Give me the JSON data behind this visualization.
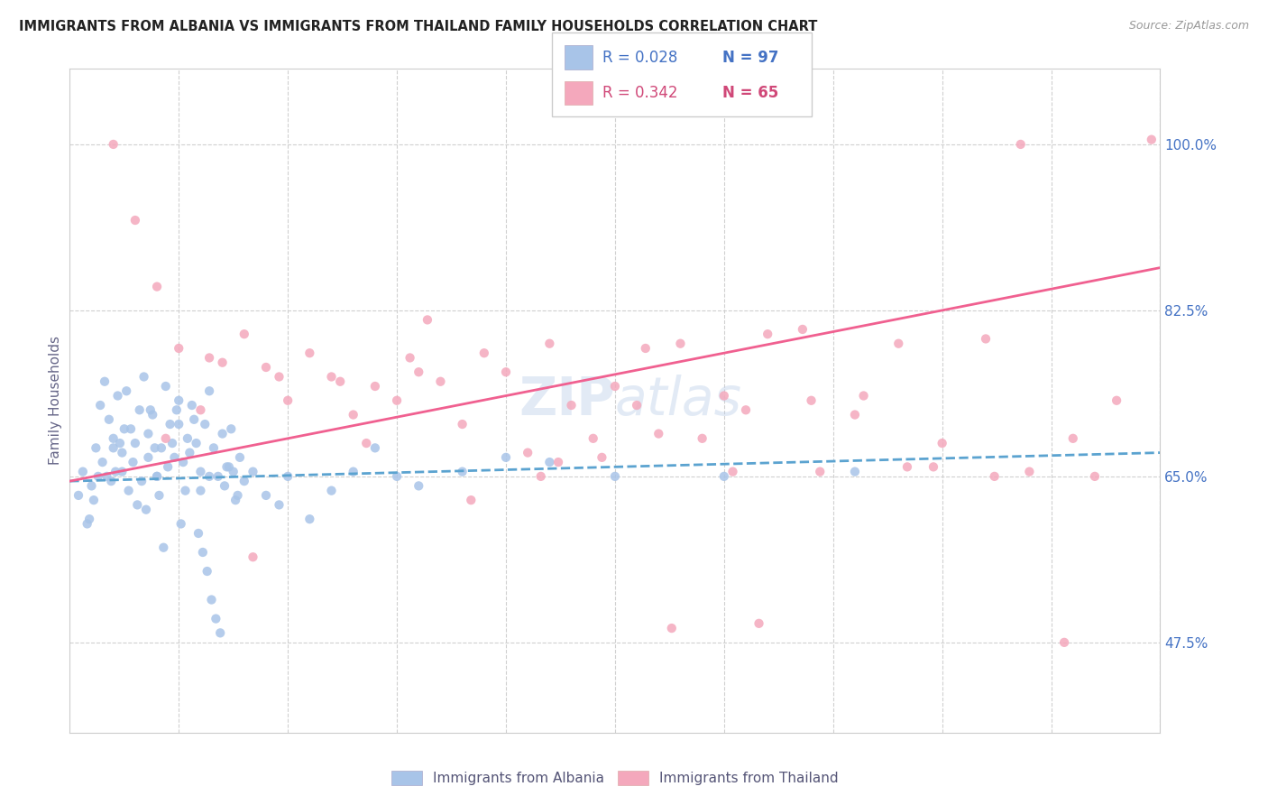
{
  "title": "IMMIGRANTS FROM ALBANIA VS IMMIGRANTS FROM THAILAND FAMILY HOUSEHOLDS CORRELATION CHART",
  "source": "Source: ZipAtlas.com",
  "ylabel": "Family Households",
  "yticks": [
    47.5,
    65.0,
    82.5,
    100.0
  ],
  "ytick_labels": [
    "47.5%",
    "65.0%",
    "82.5%",
    "100.0%"
  ],
  "xlim": [
    0.0,
    25.0
  ],
  "ylim": [
    38.0,
    108.0
  ],
  "color_albania": "#a8c4e8",
  "color_thailand": "#f4a8bc",
  "color_line_albania": "#5ba3d0",
  "color_line_thailand": "#f06090",
  "color_text_blue": "#4472c4",
  "color_text_pink": "#d04878",
  "background_color": "#ffffff",
  "albania_x": [
    0.2,
    0.3,
    0.4,
    0.5,
    0.6,
    0.7,
    0.8,
    0.9,
    1.0,
    1.1,
    1.2,
    1.3,
    1.4,
    1.5,
    1.6,
    1.7,
    1.8,
    1.9,
    2.0,
    2.1,
    2.2,
    2.3,
    2.4,
    2.5,
    2.6,
    2.7,
    2.8,
    2.9,
    3.0,
    3.1,
    3.2,
    3.3,
    3.4,
    3.5,
    3.6,
    3.7,
    3.8,
    3.9,
    4.0,
    4.2,
    4.5,
    4.8,
    5.0,
    5.5,
    6.0,
    6.5,
    7.0,
    7.5,
    8.0,
    9.0,
    10.0,
    11.0,
    12.5,
    15.0,
    18.0,
    1.05,
    1.15,
    1.25,
    1.35,
    1.45,
    1.55,
    1.65,
    1.75,
    1.85,
    1.95,
    2.05,
    2.15,
    2.25,
    2.35,
    2.45,
    2.55,
    2.65,
    2.75,
    2.85,
    2.95,
    3.05,
    3.15,
    3.25,
    3.35,
    3.45,
    3.55,
    3.65,
    3.75,
    3.85,
    0.45,
    0.55,
    0.65,
    0.75,
    0.85,
    0.95,
    1.0,
    2.0,
    3.0,
    1.2,
    1.8,
    2.5,
    3.2
  ],
  "albania_y": [
    63.0,
    65.5,
    60.0,
    64.0,
    68.0,
    72.5,
    75.0,
    71.0,
    69.0,
    73.5,
    67.5,
    74.0,
    70.0,
    68.5,
    72.0,
    75.5,
    69.5,
    71.5,
    65.0,
    68.0,
    74.5,
    70.5,
    67.0,
    73.0,
    66.5,
    69.0,
    72.5,
    68.5,
    65.5,
    70.5,
    74.0,
    68.0,
    65.0,
    69.5,
    66.0,
    70.0,
    62.5,
    67.0,
    64.5,
    65.5,
    63.0,
    62.0,
    65.0,
    60.5,
    63.5,
    65.5,
    68.0,
    65.0,
    64.0,
    65.5,
    67.0,
    66.5,
    65.0,
    65.0,
    65.5,
    65.5,
    68.5,
    70.0,
    63.5,
    66.5,
    62.0,
    64.5,
    61.5,
    72.0,
    68.0,
    63.0,
    57.5,
    66.0,
    68.5,
    72.0,
    60.0,
    63.5,
    67.5,
    71.0,
    59.0,
    57.0,
    55.0,
    52.0,
    50.0,
    48.5,
    64.0,
    66.0,
    65.5,
    63.0,
    60.5,
    62.5,
    65.0,
    66.5,
    65.0,
    64.5,
    68.0,
    65.0,
    63.5,
    65.5,
    67.0,
    70.5,
    65.0
  ],
  "thailand_x": [
    1.0,
    1.5,
    2.0,
    2.5,
    3.0,
    3.5,
    4.0,
    4.5,
    5.0,
    5.5,
    6.0,
    6.5,
    7.0,
    7.5,
    8.0,
    8.5,
    9.0,
    9.5,
    10.0,
    10.5,
    11.0,
    11.5,
    12.0,
    12.5,
    13.0,
    13.5,
    14.0,
    14.5,
    15.0,
    15.5,
    16.0,
    17.0,
    18.0,
    19.0,
    20.0,
    21.0,
    22.0,
    23.0,
    24.0,
    3.2,
    4.8,
    6.2,
    7.8,
    9.2,
    10.8,
    12.2,
    13.8,
    15.2,
    16.8,
    18.2,
    19.8,
    21.2,
    22.8,
    2.2,
    4.2,
    6.8,
    8.2,
    11.2,
    13.2,
    15.8,
    17.2,
    19.2,
    21.8,
    23.5,
    24.8
  ],
  "thailand_y": [
    100.0,
    92.0,
    85.0,
    78.5,
    72.0,
    77.0,
    80.0,
    76.5,
    73.0,
    78.0,
    75.5,
    71.5,
    74.5,
    73.0,
    76.0,
    75.0,
    70.5,
    78.0,
    76.0,
    67.5,
    79.0,
    72.5,
    69.0,
    74.5,
    72.5,
    69.5,
    79.0,
    69.0,
    73.5,
    72.0,
    80.0,
    73.0,
    71.5,
    79.0,
    68.5,
    79.5,
    65.5,
    69.0,
    73.0,
    77.5,
    75.5,
    75.0,
    77.5,
    62.5,
    65.0,
    67.0,
    49.0,
    65.5,
    80.5,
    73.5,
    66.0,
    65.0,
    47.5,
    69.0,
    56.5,
    68.5,
    81.5,
    66.5,
    78.5,
    49.5,
    65.5,
    66.0,
    100.0,
    65.0,
    100.5
  ]
}
